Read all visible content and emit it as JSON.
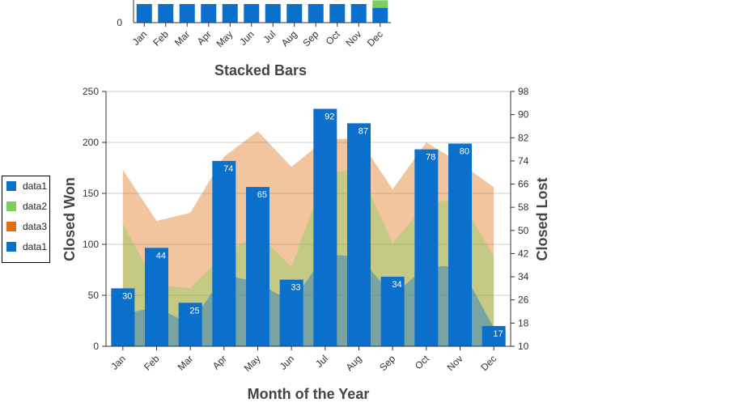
{
  "chart_data": [
    {
      "type": "bar",
      "stacked": true,
      "title": "Stacked Bars",
      "categories": [
        "Jan",
        "Feb",
        "Mar",
        "Apr",
        "May",
        "Jun",
        "Jul",
        "Aug",
        "Sep",
        "Oct",
        "Nov",
        "Dec"
      ],
      "y_tick_visible": "0",
      "series": [
        {
          "name": "",
          "color": "#0b6fcc",
          "values": [
            20,
            20,
            20,
            20,
            20,
            20,
            20,
            20,
            20,
            20,
            20,
            16
          ]
        },
        {
          "name": "",
          "color": "#7ccf5c",
          "values": [
            0,
            0,
            0,
            0,
            0,
            0,
            0,
            0,
            0,
            0,
            0,
            8
          ]
        }
      ]
    },
    {
      "type": "bar",
      "xlabel": "Month of the Year",
      "ylabel": "Closed Won",
      "y2label": "Closed Lost",
      "ylim": [
        0,
        250
      ],
      "y2lim": [
        10,
        98
      ],
      "yticks": [
        "0",
        "50",
        "100",
        "150",
        "200",
        "250"
      ],
      "y2ticks": [
        "10",
        "18",
        "26",
        "34",
        "42",
        "50",
        "58",
        "66",
        "74",
        "82",
        "90",
        "98"
      ],
      "categories": [
        "Jan",
        "Feb",
        "Mar",
        "Apr",
        "May",
        "Jun",
        "Jul",
        "Aug",
        "Sep",
        "Oct",
        "Nov",
        "Dec"
      ],
      "grid": true,
      "legend": {
        "position": "left",
        "items": [
          {
            "name": "data1",
            "color": "#0b6fcc"
          },
          {
            "name": "data2",
            "color": "#7ccf5c"
          },
          {
            "name": "data3",
            "color": "#e06d10"
          },
          {
            "name": "data1",
            "color": "#0b6fcc"
          }
        ]
      },
      "series": [
        {
          "name": "data1",
          "type": "area",
          "axis": "left",
          "color": "#0b6fcc",
          "opacity": 0.4,
          "values": [
            32,
            38,
            22,
            70,
            63,
            43,
            90,
            88,
            50,
            78,
            79,
            18
          ]
        },
        {
          "name": "data2",
          "type": "area",
          "axis": "left",
          "color": "#7ccf5c",
          "opacity": 0.4,
          "values": [
            120,
            60,
            57,
            90,
            110,
            78,
            168,
            175,
            101,
            140,
            145,
            88
          ]
        },
        {
          "name": "data3",
          "type": "area",
          "axis": "left",
          "color": "#e06d10",
          "opacity": 0.4,
          "values": [
            173,
            123,
            131,
            186,
            211,
            176,
            203,
            204,
            154,
            200,
            180,
            156
          ]
        },
        {
          "name": "data1",
          "type": "bar",
          "axis": "right",
          "color": "#0b6fcc",
          "values": [
            30,
            44,
            25,
            74,
            65,
            33,
            92,
            87,
            34,
            78,
            80,
            17
          ],
          "labels": [
            "30",
            "44",
            "25",
            "74",
            "65",
            "33",
            "92",
            "87",
            "34",
            "78",
            "80",
            "17"
          ]
        }
      ]
    }
  ]
}
